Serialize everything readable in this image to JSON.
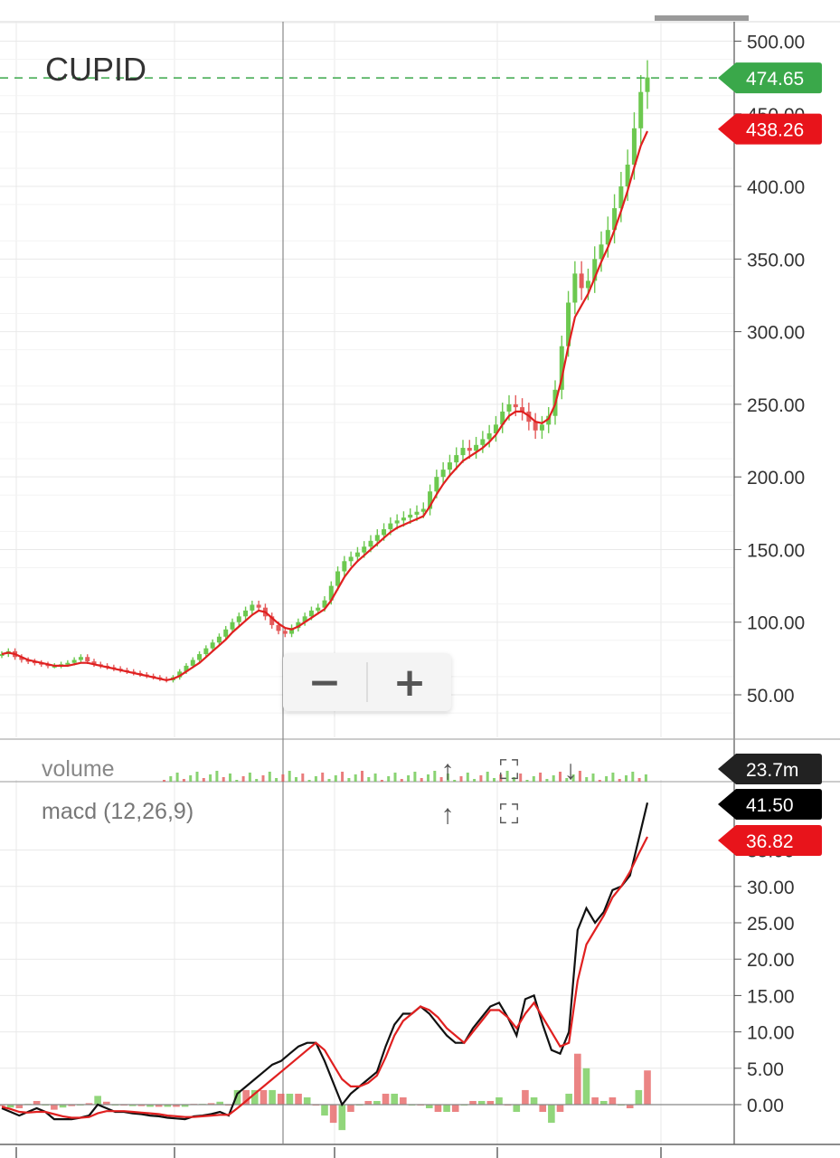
{
  "chart_data": [
    {
      "panel": "price",
      "type": "line",
      "title": "CUPID",
      "ylim": [
        20,
        510
      ],
      "yticks": [
        50,
        100,
        150,
        200,
        250,
        300,
        350,
        400,
        450,
        500
      ],
      "ytick_labels": [
        "50.00",
        "100.00",
        "150.00",
        "200.00",
        "250.00",
        "300.00",
        "350.00",
        "400.00",
        "450.00",
        "500.00"
      ],
      "grid": true,
      "series": [
        {
          "style": "candles",
          "values": [
            78,
            80,
            76,
            74,
            73,
            72,
            71,
            70,
            70,
            71,
            72,
            74,
            76,
            73,
            71,
            70,
            69,
            68,
            67,
            66,
            65,
            64,
            63,
            62,
            61,
            60,
            62,
            66,
            70,
            74,
            78,
            82,
            86,
            90,
            95,
            100,
            104,
            108,
            112,
            110,
            104,
            98,
            94,
            92,
            96,
            100,
            104,
            108,
            110,
            115,
            125,
            135,
            142,
            145,
            148,
            152,
            156,
            160,
            164,
            168,
            170,
            172,
            174,
            176,
            178,
            190,
            200,
            205,
            210,
            215,
            220,
            218,
            222,
            226,
            230,
            236,
            245,
            250,
            248,
            245,
            238,
            232,
            236,
            242,
            260,
            290,
            320,
            340,
            330,
            335,
            350,
            360,
            370,
            385,
            400,
            415,
            440,
            465,
            475
          ]
        },
        {
          "style": "line",
          "color": "#e02020",
          "values": [
            78,
            79,
            78,
            76,
            74,
            73,
            72,
            71,
            70,
            70,
            70,
            71,
            72,
            72,
            71,
            70,
            69,
            68,
            67,
            66,
            65,
            64,
            63,
            62,
            61,
            60,
            61,
            63,
            66,
            69,
            72,
            76,
            80,
            84,
            88,
            93,
            97,
            101,
            105,
            108,
            107,
            103,
            99,
            96,
            95,
            97,
            100,
            103,
            106,
            109,
            115,
            123,
            131,
            137,
            142,
            146,
            150,
            154,
            158,
            162,
            165,
            167,
            169,
            171,
            173,
            180,
            188,
            195,
            201,
            206,
            211,
            214,
            217,
            220,
            224,
            229,
            236,
            242,
            245,
            245,
            242,
            238,
            237,
            240,
            250,
            268,
            290,
            310,
            318,
            326,
            337,
            348,
            358,
            370,
            383,
            397,
            413,
            428,
            438
          ]
        }
      ],
      "markers": [
        {
          "label": "474.65",
          "value": 474.65,
          "color": "#3aa84a",
          "line": "dashed"
        },
        {
          "label": "438.26",
          "value": 438.26,
          "color": "#e8141b"
        }
      ]
    },
    {
      "panel": "volume",
      "type": "bar",
      "title": "volume",
      "marker": {
        "label": "23.7m",
        "color": "#222222"
      }
    },
    {
      "panel": "macd",
      "type": "line",
      "title": "macd (12,26,9)",
      "ylim": [
        -3,
        43
      ],
      "yticks": [
        0,
        5,
        10,
        15,
        20,
        25,
        30,
        35
      ],
      "ytick_labels": [
        "0.00",
        "5.00",
        "10.00",
        "15.00",
        "20.00",
        "25.00",
        "30.00",
        "35.00"
      ],
      "grid": true,
      "series": [
        {
          "color": "#111111",
          "values": [
            -0.5,
            -1,
            -1.5,
            -1,
            -0.5,
            -1,
            -2,
            -2,
            -2,
            -1.8,
            -1.5,
            0,
            -0.5,
            -1,
            -1,
            -1.2,
            -1.3,
            -1.5,
            -1.6,
            -1.8,
            -1.9,
            -2,
            -1.6,
            -1.5,
            -1.3,
            -1,
            -1.5,
            1.5,
            2.5,
            3.5,
            4.5,
            5.5,
            6,
            7,
            8,
            8.5,
            8.5,
            6,
            3,
            0,
            1.5,
            2.5,
            3.5,
            4.5,
            8,
            11,
            12.5,
            12.5,
            13.5,
            12.5,
            11,
            9.5,
            8.5,
            8.5,
            10.5,
            12,
            13.5,
            14,
            12,
            9.5,
            14.5,
            15,
            11,
            7.5,
            7,
            10,
            24,
            27,
            25,
            26.5,
            29.5,
            30,
            31.5,
            36.5,
            41.5
          ]
        },
        {
          "color": "#e02020",
          "values": [
            -0.3,
            -0.6,
            -1,
            -1.1,
            -1,
            -1,
            -1.3,
            -1.6,
            -1.8,
            -1.8,
            -1.7,
            -1.2,
            -0.9,
            -0.9,
            -0.9,
            -1,
            -1.1,
            -1.2,
            -1.3,
            -1.5,
            -1.6,
            -1.7,
            -1.7,
            -1.6,
            -1.5,
            -1.4,
            -1.4,
            -0.5,
            0.5,
            1.5,
            2.5,
            3.5,
            4.5,
            5.5,
            6.5,
            7.5,
            8.5,
            7.5,
            5.5,
            3.5,
            2.5,
            2.5,
            3,
            4,
            6.5,
            9.5,
            11.5,
            12.5,
            13.5,
            13,
            12,
            10.5,
            9.5,
            8.5,
            10,
            11.5,
            13,
            13,
            12,
            10.5,
            12.5,
            14,
            12,
            10,
            8,
            8.5,
            17,
            22,
            24,
            26,
            28.5,
            30,
            32,
            34.5,
            36.82
          ]
        },
        {
          "style": "histogram",
          "values": [
            -0.2,
            -0.4,
            -0.5,
            0.1,
            0.5,
            0,
            -0.7,
            -0.4,
            -0.2,
            0,
            0.2,
            1.2,
            0.4,
            -0.1,
            -0.1,
            -0.2,
            -0.2,
            -0.3,
            -0.3,
            -0.3,
            -0.3,
            -0.3,
            0.1,
            0.1,
            0.2,
            0.4,
            -0.1,
            2,
            2,
            2,
            2,
            2,
            1.5,
            1.5,
            1.5,
            1,
            0,
            -1.5,
            -2.5,
            -3.5,
            -1,
            0,
            0.5,
            0.5,
            1.5,
            1.5,
            1,
            0,
            0,
            -0.5,
            -1,
            -1,
            -1,
            0,
            0.5,
            0.5,
            0.5,
            1,
            0,
            -1,
            2,
            1,
            -1,
            -2.5,
            -1,
            1.5,
            7,
            5,
            1,
            0.5,
            1,
            0,
            -0.5,
            2,
            4.7
          ]
        }
      ],
      "markers": [
        {
          "label": "41.50",
          "value": 41.5,
          "color": "#000000"
        },
        {
          "label": "36.82",
          "value": 36.82,
          "color": "#e8141b"
        }
      ]
    }
  ],
  "toolbar": {
    "up_glyph": "↑",
    "expand_glyph": "⛶",
    "down_glyph": "↓"
  },
  "zoom": {
    "minus": "−",
    "plus": "+"
  },
  "colors": {
    "up": "#6cc84f",
    "down": "#e45b5b",
    "grid": "#e9e9e9",
    "axis": "#555555"
  }
}
